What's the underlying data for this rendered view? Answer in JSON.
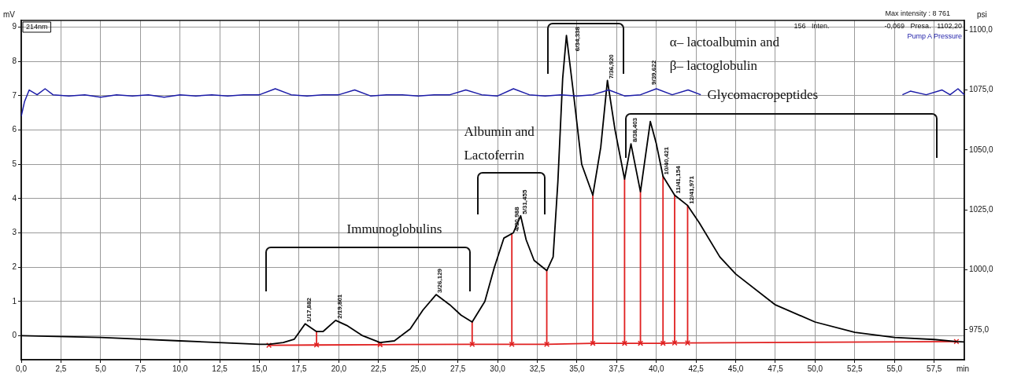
{
  "chart_data": {
    "type": "line",
    "xlabel": "min",
    "ylabel": "mV",
    "y2label": "psi",
    "xlim": [
      0,
      59.4
    ],
    "ylim": [
      -0.7,
      9.2
    ],
    "y2lim": [
      962.5,
      1104
    ],
    "xticks": [
      {
        "value": 0,
        "label": "0,0"
      },
      {
        "value": 2.5,
        "label": "2,5"
      },
      {
        "value": 5,
        "label": "5,0"
      },
      {
        "value": 7.5,
        "label": "7,5"
      },
      {
        "value": 10,
        "label": "10,0"
      },
      {
        "value": 12.5,
        "label": "12,5"
      },
      {
        "value": 15,
        "label": "15,0"
      },
      {
        "value": 17.5,
        "label": "17,5"
      },
      {
        "value": 20,
        "label": "20,0"
      },
      {
        "value": 22.5,
        "label": "22,5"
      },
      {
        "value": 25,
        "label": "25,0"
      },
      {
        "value": 27.5,
        "label": "27,5"
      },
      {
        "value": 30,
        "label": "30,0"
      },
      {
        "value": 32.5,
        "label": "32,5"
      },
      {
        "value": 35,
        "label": "35,0"
      },
      {
        "value": 37.5,
        "label": "37,5"
      },
      {
        "value": 40,
        "label": "40,0"
      },
      {
        "value": 42.5,
        "label": "42,5"
      },
      {
        "value": 45,
        "label": "45,0"
      },
      {
        "value": 47.5,
        "label": "47,5"
      },
      {
        "value": 50,
        "label": "50,0"
      },
      {
        "value": 52.5,
        "label": "52,5"
      },
      {
        "value": 55,
        "label": "55,0"
      },
      {
        "value": 57.5,
        "label": "57,5"
      }
    ],
    "yticks": [
      0,
      1,
      2,
      3,
      4,
      5,
      6,
      7,
      8,
      9
    ],
    "y2ticks": [
      {
        "value": 975,
        "label": "975,0"
      },
      {
        "value": 1000,
        "label": "1000,0"
      },
      {
        "value": 1025,
        "label": "1025,0"
      },
      {
        "value": 1050,
        "label": "1050,0"
      },
      {
        "value": 1075,
        "label": "1075,0"
      },
      {
        "value": 1100,
        "label": "1100,0"
      }
    ],
    "grid": true,
    "legend": "top right",
    "marker": "none",
    "series": [
      {
        "color": "#000000",
        "x": [
          0,
          5,
          10,
          15,
          15.6,
          16.5,
          17.2,
          17.882,
          18.6,
          19.0,
          19.801,
          20.5,
          21.5,
          22.6,
          23.5,
          24.5,
          25.3,
          26.129,
          27.0,
          27.7,
          28.4,
          29.2,
          29.8,
          30.4,
          30.988,
          31.455,
          31.8,
          32.3,
          33.1,
          33.5,
          33.8,
          34.1,
          34.338,
          34.8,
          35.3,
          36.0,
          36.5,
          36.92,
          37.4,
          38.0,
          38.403,
          39.0,
          39.622,
          40.0,
          40.421,
          41.154,
          41.971,
          42.7,
          44,
          45,
          47.5,
          50,
          52.5,
          55,
          57.5,
          58.9,
          59.4
        ],
        "values": [
          0.0,
          -0.05,
          -0.15,
          -0.25,
          -0.25,
          -0.2,
          -0.1,
          0.35,
          0.12,
          0.12,
          0.45,
          0.3,
          0.0,
          -0.2,
          -0.15,
          0.2,
          0.75,
          1.2,
          0.9,
          0.6,
          0.4,
          1.0,
          2.0,
          2.85,
          3.0,
          3.5,
          2.8,
          2.2,
          1.9,
          2.3,
          4.5,
          7.5,
          8.76,
          7.0,
          5.0,
          4.1,
          5.5,
          7.45,
          6.0,
          4.57,
          5.6,
          4.2,
          6.25,
          5.6,
          4.65,
          4.1,
          3.8,
          3.3,
          2.3,
          1.8,
          0.9,
          0.4,
          0.1,
          -0.05,
          -0.11,
          -0.17,
          -0.18
        ]
      },
      {
        "name": "Pump A Pressure",
        "color": "#1c1ca8",
        "axis": "y2",
        "x": [
          0,
          0.2,
          0.5,
          1,
          1.5,
          2,
          3,
          4,
          5,
          6,
          7,
          8,
          9,
          10,
          11,
          12,
          13,
          14,
          15,
          16,
          17,
          18,
          19,
          20,
          21,
          22,
          23,
          24,
          25,
          26,
          27,
          28,
          29,
          30,
          31,
          32,
          33,
          34,
          35,
          36,
          37,
          38,
          39,
          40,
          41,
          42,
          42.8,
          43.5,
          55.5,
          56,
          57,
          58,
          58.5,
          59,
          59.4
        ],
        "values": [
          1064,
          1070,
          1075,
          1073,
          1075.5,
          1073,
          1072.5,
          1073,
          1072,
          1073,
          1072.5,
          1073,
          1072,
          1073,
          1072.5,
          1073,
          1072.5,
          1073,
          1073,
          1075.5,
          1073,
          1072.5,
          1073,
          1073,
          1075,
          1072.5,
          1073,
          1073,
          1072.5,
          1073,
          1073,
          1075,
          1073,
          1072.5,
          1075.5,
          1073,
          1072.5,
          1073,
          1072.5,
          1073,
          1075,
          1072.5,
          1073,
          1075.5,
          1073,
          1075,
          1073,
          null,
          1073,
          1074.5,
          1073,
          1075,
          1073,
          1075.5,
          1073
        ]
      },
      {
        "color": "#e02020",
        "marker": "cross",
        "x": [
          15.6,
          18.6,
          22.6,
          28.4,
          30.9,
          33.1,
          36.0,
          38.0,
          39.0,
          40.421,
          41.154,
          41.971,
          58.9
        ],
        "values": [
          -0.28,
          -0.27,
          -0.26,
          -0.25,
          -0.25,
          -0.25,
          -0.22,
          -0.22,
          -0.22,
          -0.22,
          -0.21,
          -0.21,
          -0.17
        ]
      },
      {
        "color": "#e02020",
        "x": [
          18.6,
          18.6
        ],
        "values": [
          0.12,
          -0.27
        ]
      },
      {
        "color": "#e02020",
        "x": [
          28.4,
          28.4
        ],
        "values": [
          0.4,
          -0.25
        ]
      },
      {
        "color": "#e02020",
        "x": [
          30.9,
          30.9
        ],
        "values": [
          2.95,
          -0.25
        ]
      },
      {
        "color": "#e02020",
        "x": [
          33.1,
          33.1
        ],
        "values": [
          1.9,
          -0.25
        ]
      },
      {
        "color": "#e02020",
        "x": [
          36.0,
          36.0
        ],
        "values": [
          4.1,
          -0.22
        ]
      },
      {
        "color": "#e02020",
        "x": [
          38.0,
          38.0
        ],
        "values": [
          4.57,
          -0.22
        ]
      },
      {
        "color": "#e02020",
        "x": [
          39.0,
          39.0
        ],
        "values": [
          4.2,
          -0.22
        ]
      },
      {
        "color": "#e02020",
        "x": [
          40.421,
          40.421
        ],
        "values": [
          4.65,
          -0.22
        ]
      },
      {
        "color": "#e02020",
        "x": [
          41.154,
          41.154
        ],
        "values": [
          4.1,
          -0.21
        ]
      },
      {
        "color": "#e02020",
        "x": [
          41.971,
          41.971
        ],
        "values": [
          3.8,
          -0.21
        ]
      }
    ],
    "annotations": [
      "214nm",
      "Max intensity : 8 761",
      "156   Inten.",
      "-0,069   Presa.   1102,20",
      "Immunoglobulins",
      "Albumin and\nLactoferrin",
      "α– lactoalbumin and\nβ– lactoglobulin",
      "Glycomacropeptides",
      "9/39,622",
      {
        "text": "1/17,882",
        "x": 17.882,
        "y": 0.35
      },
      {
        "text": "2/19,801",
        "x": 19.801,
        "y": 0.45
      },
      {
        "text": "3/26,129",
        "x": 26.129,
        "y": 1.2
      },
      {
        "text": "4/30,988",
        "x": 30.988,
        "y": 3.0
      },
      {
        "text": "5/31,455",
        "x": 31.455,
        "y": 3.5
      },
      {
        "text": "6/34,338",
        "x": 34.338,
        "y": 8.76
      },
      {
        "text": "7/36,920",
        "x": 36.92,
        "y": 7.45
      },
      {
        "text": "8/38,403",
        "x": 38.403,
        "y": 5.6
      },
      {
        "text": "10/40,421",
        "x": 40.421,
        "y": 4.65
      },
      {
        "text": "11/41,154",
        "x": 41.154,
        "y": 4.1
      },
      {
        "text": "12/41,971",
        "x": 41.971,
        "y": 3.8
      }
    ]
  }
}
